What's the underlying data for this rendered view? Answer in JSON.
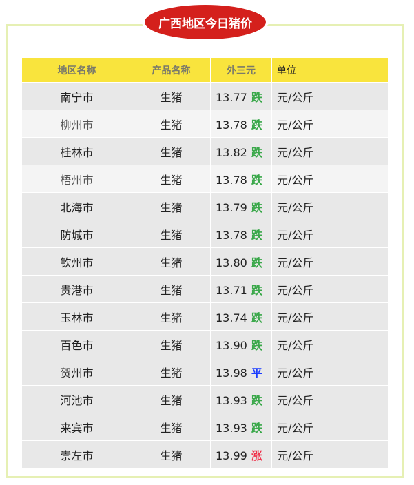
{
  "title": "广西地区今日猪价",
  "colors": {
    "down": "#3aa84a",
    "flat": "#1a3cff",
    "up": "#f0304a",
    "header_bg": "#f9e43d",
    "badge": "#d4201c",
    "frame": "#e6f0b4"
  },
  "headers": [
    "地区名称",
    "产品名称",
    "外三元",
    "单位"
  ],
  "rows": [
    {
      "region": "南宁市",
      "product": "生猪",
      "price": "13.77",
      "trend": "跌",
      "unit": "元/公斤"
    },
    {
      "region": "柳州市",
      "product": "生猪",
      "price": "13.78",
      "trend": "跌",
      "unit": "元/公斤"
    },
    {
      "region": "桂林市",
      "product": "生猪",
      "price": "13.82",
      "trend": "跌",
      "unit": "元/公斤"
    },
    {
      "region": "梧州市",
      "product": "生猪",
      "price": "13.78",
      "trend": "跌",
      "unit": "元/公斤"
    },
    {
      "region": "北海市",
      "product": "生猪",
      "price": "13.79",
      "trend": "跌",
      "unit": "元/公斤"
    },
    {
      "region": "防城市",
      "product": "生猪",
      "price": "13.78",
      "trend": "跌",
      "unit": "元/公斤"
    },
    {
      "region": "钦州市",
      "product": "生猪",
      "price": "13.80",
      "trend": "跌",
      "unit": "元/公斤"
    },
    {
      "region": "贵港市",
      "product": "生猪",
      "price": "13.71",
      "trend": "跌",
      "unit": "元/公斤"
    },
    {
      "region": "玉林市",
      "product": "生猪",
      "price": "13.74",
      "trend": "跌",
      "unit": "元/公斤"
    },
    {
      "region": "百色市",
      "product": "生猪",
      "price": "13.90",
      "trend": "跌",
      "unit": "元/公斤"
    },
    {
      "region": "贺州市",
      "product": "生猪",
      "price": "13.98",
      "trend": "平",
      "unit": "元/公斤"
    },
    {
      "region": "河池市",
      "product": "生猪",
      "price": "13.93",
      "trend": "跌",
      "unit": "元/公斤"
    },
    {
      "region": "来宾市",
      "product": "生猪",
      "price": "13.93",
      "trend": "跌",
      "unit": "元/公斤"
    },
    {
      "region": "崇左市",
      "product": "生猪",
      "price": "13.99",
      "trend": "涨",
      "unit": "元/公斤"
    }
  ]
}
